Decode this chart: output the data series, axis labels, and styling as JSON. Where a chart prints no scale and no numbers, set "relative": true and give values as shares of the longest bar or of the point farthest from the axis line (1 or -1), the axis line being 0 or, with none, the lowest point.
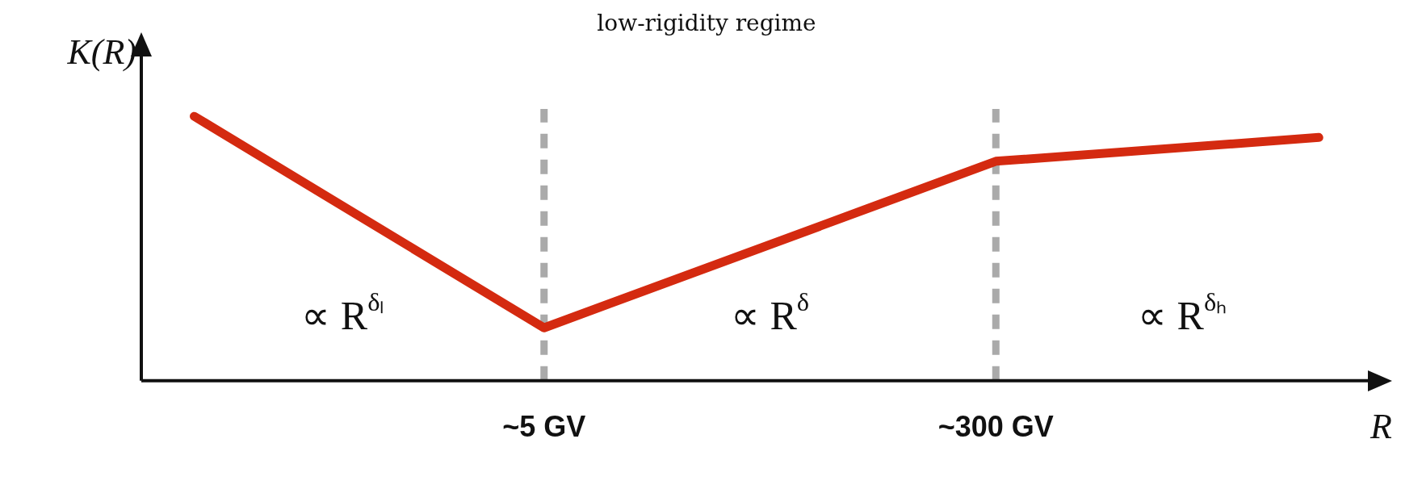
{
  "chart_data": {
    "type": "line",
    "relative": true,
    "log": "x",
    "xlabel": "R",
    "ylabel": "K(R)",
    "x": [
      0.21,
      5,
      300,
      5600
    ],
    "series": [
      {
        "color": "#d42a10",
        "values": [
          1,
          0.2,
          0.83,
          0.92
        ]
      }
    ],
    "xlim": [
      0.13,
      8800
    ],
    "xticks": [
      {
        "value": 5,
        "label": "~5 GV"
      },
      {
        "value": 300,
        "label": "~300 GV"
      }
    ],
    "ref_lines": [
      {
        "axis": "x",
        "value": 5,
        "label": null,
        "color": "#aaaaaa",
        "line_style": "dashed"
      },
      {
        "axis": "x",
        "value": 300,
        "label": null,
        "color": "#aaaaaa",
        "line_style": "dashed"
      }
    ],
    "annotations": [
      "∝ R$^{δₗ}$",
      "∝ R$^{δ}$",
      "∝ R$^{δₕ}$",
      "low-rigidity regime"
    ],
    "grid": false,
    "legend": false,
    "marker": "none",
    "line_style": "solid"
  }
}
